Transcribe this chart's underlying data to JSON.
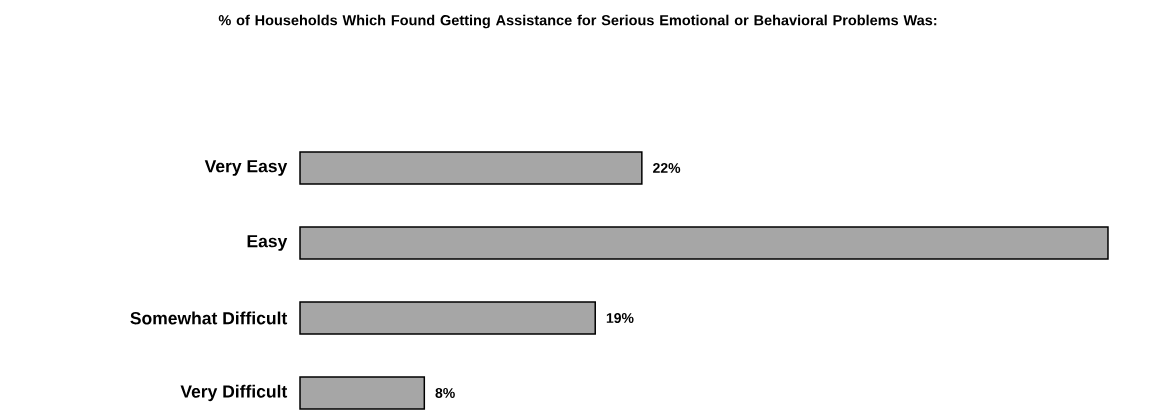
{
  "chart_data": {
    "type": "bar",
    "orientation": "horizontal",
    "title": "% of Households Which Found Getting Assistance for Serious Emotional or Behavioral Problems Was:",
    "categories": [
      "Very Easy",
      "Easy",
      "Somewhat Difficult",
      "Very Difficult"
    ],
    "values": [
      22,
      52,
      19,
      8
    ],
    "value_labels": [
      "22%",
      null,
      "19%",
      "8%"
    ],
    "color": "#a6a6a6"
  }
}
